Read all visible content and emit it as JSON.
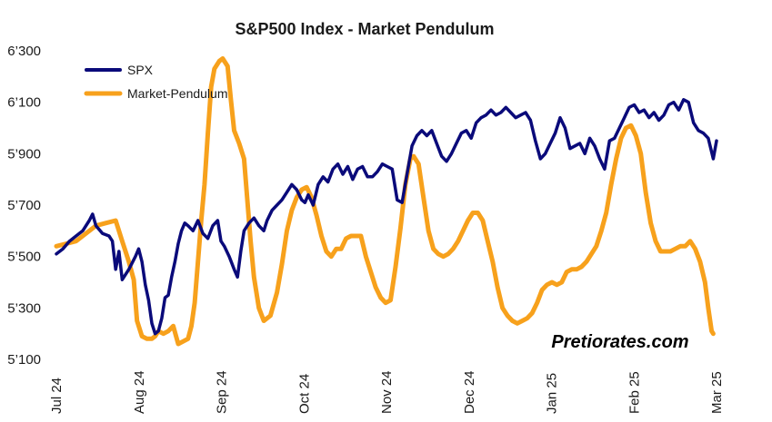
{
  "chart_data": {
    "type": "line",
    "title": "S&P500 Index - Market Pendulum",
    "xlabel": "",
    "ylabel": "",
    "x_tick_labels": [
      "Jul 24",
      "Aug 24",
      "Sep 24",
      "Oct 24",
      "Nov 24",
      "Dec 24",
      "Jan 25",
      "Feb 25",
      "Mar 25"
    ],
    "y_ticks": [
      "5’100",
      "5’300",
      "5’500",
      "5’700",
      "5’900",
      "6’100",
      "6’300"
    ],
    "ylim": [
      5100,
      6300
    ],
    "grid": false,
    "legend_position": "top-left",
    "watermark": "Pretiorates.com",
    "series": [
      {
        "name": "SPX",
        "color": "#0a0a7a",
        "points": [
          [
            0,
            5510
          ],
          [
            0.2,
            5530
          ],
          [
            0.4,
            5560
          ],
          [
            0.6,
            5580
          ],
          [
            0.8,
            5600
          ],
          [
            1.0,
            5640
          ],
          [
            1.1,
            5665
          ],
          [
            1.2,
            5620
          ],
          [
            1.4,
            5590
          ],
          [
            1.6,
            5580
          ],
          [
            1.7,
            5560
          ],
          [
            1.8,
            5450
          ],
          [
            1.9,
            5520
          ],
          [
            2.0,
            5410
          ],
          [
            2.2,
            5450
          ],
          [
            2.4,
            5500
          ],
          [
            2.5,
            5530
          ],
          [
            2.6,
            5480
          ],
          [
            2.7,
            5390
          ],
          [
            2.8,
            5330
          ],
          [
            2.9,
            5240
          ],
          [
            3.0,
            5200
          ],
          [
            3.1,
            5210
          ],
          [
            3.2,
            5260
          ],
          [
            3.3,
            5340
          ],
          [
            3.4,
            5350
          ],
          [
            3.5,
            5420
          ],
          [
            3.6,
            5480
          ],
          [
            3.7,
            5550
          ],
          [
            3.8,
            5600
          ],
          [
            3.9,
            5630
          ],
          [
            4.0,
            5620
          ],
          [
            4.15,
            5600
          ],
          [
            4.3,
            5640
          ],
          [
            4.45,
            5590
          ],
          [
            4.6,
            5570
          ],
          [
            4.75,
            5620
          ],
          [
            4.9,
            5640
          ],
          [
            5.0,
            5560
          ],
          [
            5.1,
            5540
          ],
          [
            5.25,
            5500
          ],
          [
            5.4,
            5450
          ],
          [
            5.5,
            5420
          ],
          [
            5.6,
            5520
          ],
          [
            5.7,
            5600
          ],
          [
            5.85,
            5630
          ],
          [
            6.0,
            5650
          ],
          [
            6.15,
            5620
          ],
          [
            6.3,
            5600
          ],
          [
            6.4,
            5640
          ],
          [
            6.55,
            5680
          ],
          [
            6.7,
            5700
          ],
          [
            6.85,
            5720
          ],
          [
            7.0,
            5750
          ],
          [
            7.15,
            5780
          ],
          [
            7.3,
            5760
          ],
          [
            7.45,
            5720
          ],
          [
            7.55,
            5710
          ],
          [
            7.65,
            5740
          ],
          [
            7.8,
            5700
          ],
          [
            7.95,
            5780
          ],
          [
            8.1,
            5810
          ],
          [
            8.25,
            5790
          ],
          [
            8.4,
            5840
          ],
          [
            8.55,
            5860
          ],
          [
            8.7,
            5820
          ],
          [
            8.85,
            5850
          ],
          [
            9.0,
            5800
          ],
          [
            9.15,
            5840
          ],
          [
            9.3,
            5850
          ],
          [
            9.45,
            5810
          ],
          [
            9.6,
            5810
          ],
          [
            9.75,
            5830
          ],
          [
            9.9,
            5860
          ],
          [
            10.05,
            5850
          ],
          [
            10.2,
            5840
          ],
          [
            10.35,
            5720
          ],
          [
            10.5,
            5710
          ],
          [
            10.65,
            5820
          ],
          [
            10.8,
            5930
          ],
          [
            10.95,
            5970
          ],
          [
            11.1,
            5990
          ],
          [
            11.25,
            5970
          ],
          [
            11.4,
            5990
          ],
          [
            11.55,
            5940
          ],
          [
            11.7,
            5890
          ],
          [
            11.85,
            5870
          ],
          [
            12.0,
            5900
          ],
          [
            12.15,
            5940
          ],
          [
            12.3,
            5980
          ],
          [
            12.45,
            5990
          ],
          [
            12.6,
            5960
          ],
          [
            12.75,
            6020
          ],
          [
            12.9,
            6040
          ],
          [
            13.05,
            6050
          ],
          [
            13.2,
            6070
          ],
          [
            13.35,
            6050
          ],
          [
            13.5,
            6060
          ],
          [
            13.65,
            6080
          ],
          [
            13.8,
            6060
          ],
          [
            13.95,
            6040
          ],
          [
            14.1,
            6050
          ],
          [
            14.25,
            6060
          ],
          [
            14.4,
            6030
          ],
          [
            14.55,
            5950
          ],
          [
            14.7,
            5880
          ],
          [
            14.85,
            5900
          ],
          [
            15.0,
            5940
          ],
          [
            15.15,
            5980
          ],
          [
            15.3,
            6040
          ],
          [
            15.45,
            6000
          ],
          [
            15.6,
            5920
          ],
          [
            15.75,
            5930
          ],
          [
            15.9,
            5940
          ],
          [
            16.05,
            5900
          ],
          [
            16.2,
            5960
          ],
          [
            16.35,
            5930
          ],
          [
            16.5,
            5880
          ],
          [
            16.65,
            5840
          ],
          [
            16.8,
            5950
          ],
          [
            16.95,
            5960
          ],
          [
            17.1,
            6000
          ],
          [
            17.25,
            6040
          ],
          [
            17.4,
            6080
          ],
          [
            17.55,
            6090
          ],
          [
            17.7,
            6060
          ],
          [
            17.85,
            6070
          ],
          [
            18.0,
            6040
          ],
          [
            18.15,
            6060
          ],
          [
            18.3,
            6030
          ],
          [
            18.45,
            6050
          ],
          [
            18.6,
            6090
          ],
          [
            18.75,
            6100
          ],
          [
            18.9,
            6070
          ],
          [
            19.05,
            6110
          ],
          [
            19.2,
            6100
          ],
          [
            19.35,
            6020
          ],
          [
            19.5,
            5990
          ],
          [
            19.65,
            5980
          ],
          [
            19.8,
            5960
          ],
          [
            19.95,
            5880
          ],
          [
            20.05,
            5950
          ]
        ]
      },
      {
        "name": "Market-Pendulum",
        "color": "#f7a11c",
        "points": [
          [
            0,
            5540
          ],
          [
            0.3,
            5550
          ],
          [
            0.6,
            5560
          ],
          [
            0.9,
            5590
          ],
          [
            1.2,
            5620
          ],
          [
            1.5,
            5630
          ],
          [
            1.8,
            5640
          ],
          [
            2.0,
            5560
          ],
          [
            2.2,
            5480
          ],
          [
            2.35,
            5410
          ],
          [
            2.45,
            5250
          ],
          [
            2.6,
            5190
          ],
          [
            2.75,
            5180
          ],
          [
            2.9,
            5180
          ],
          [
            3.0,
            5190
          ],
          [
            3.1,
            5210
          ],
          [
            3.25,
            5200
          ],
          [
            3.4,
            5210
          ],
          [
            3.55,
            5230
          ],
          [
            3.7,
            5160
          ],
          [
            3.85,
            5170
          ],
          [
            4.0,
            5180
          ],
          [
            4.1,
            5230
          ],
          [
            4.2,
            5320
          ],
          [
            4.3,
            5480
          ],
          [
            4.4,
            5640
          ],
          [
            4.5,
            5780
          ],
          [
            4.6,
            5980
          ],
          [
            4.7,
            6160
          ],
          [
            4.8,
            6230
          ],
          [
            4.95,
            6260
          ],
          [
            5.05,
            6270
          ],
          [
            5.2,
            6240
          ],
          [
            5.3,
            6110
          ],
          [
            5.4,
            5990
          ],
          [
            5.55,
            5940
          ],
          [
            5.7,
            5880
          ],
          [
            5.8,
            5720
          ],
          [
            5.9,
            5560
          ],
          [
            6.0,
            5420
          ],
          [
            6.15,
            5300
          ],
          [
            6.3,
            5250
          ],
          [
            6.5,
            5270
          ],
          [
            6.7,
            5360
          ],
          [
            6.85,
            5470
          ],
          [
            7.0,
            5600
          ],
          [
            7.15,
            5680
          ],
          [
            7.3,
            5730
          ],
          [
            7.45,
            5760
          ],
          [
            7.6,
            5770
          ],
          [
            7.75,
            5730
          ],
          [
            7.9,
            5660
          ],
          [
            8.05,
            5580
          ],
          [
            8.2,
            5520
          ],
          [
            8.35,
            5500
          ],
          [
            8.5,
            5530
          ],
          [
            8.65,
            5530
          ],
          [
            8.8,
            5570
          ],
          [
            8.95,
            5580
          ],
          [
            9.1,
            5580
          ],
          [
            9.25,
            5580
          ],
          [
            9.4,
            5500
          ],
          [
            9.55,
            5440
          ],
          [
            9.7,
            5380
          ],
          [
            9.85,
            5340
          ],
          [
            10.0,
            5320
          ],
          [
            10.15,
            5330
          ],
          [
            10.3,
            5460
          ],
          [
            10.45,
            5610
          ],
          [
            10.6,
            5780
          ],
          [
            10.75,
            5880
          ],
          [
            10.85,
            5890
          ],
          [
            11.0,
            5860
          ],
          [
            11.15,
            5730
          ],
          [
            11.3,
            5600
          ],
          [
            11.45,
            5530
          ],
          [
            11.6,
            5510
          ],
          [
            11.75,
            5500
          ],
          [
            11.9,
            5510
          ],
          [
            12.05,
            5530
          ],
          [
            12.2,
            5560
          ],
          [
            12.35,
            5600
          ],
          [
            12.5,
            5640
          ],
          [
            12.65,
            5670
          ],
          [
            12.8,
            5670
          ],
          [
            12.95,
            5640
          ],
          [
            13.1,
            5560
          ],
          [
            13.25,
            5480
          ],
          [
            13.4,
            5380
          ],
          [
            13.55,
            5300
          ],
          [
            13.7,
            5270
          ],
          [
            13.85,
            5250
          ],
          [
            14.0,
            5240
          ],
          [
            14.15,
            5250
          ],
          [
            14.3,
            5260
          ],
          [
            14.45,
            5280
          ],
          [
            14.6,
            5320
          ],
          [
            14.75,
            5370
          ],
          [
            14.9,
            5390
          ],
          [
            15.05,
            5400
          ],
          [
            15.2,
            5390
          ],
          [
            15.35,
            5400
          ],
          [
            15.5,
            5440
          ],
          [
            15.65,
            5450
          ],
          [
            15.8,
            5450
          ],
          [
            15.95,
            5460
          ],
          [
            16.1,
            5480
          ],
          [
            16.25,
            5510
          ],
          [
            16.4,
            5540
          ],
          [
            16.55,
            5600
          ],
          [
            16.7,
            5670
          ],
          [
            16.85,
            5780
          ],
          [
            17.0,
            5880
          ],
          [
            17.15,
            5960
          ],
          [
            17.3,
            6000
          ],
          [
            17.45,
            6010
          ],
          [
            17.6,
            5970
          ],
          [
            17.75,
            5900
          ],
          [
            17.9,
            5750
          ],
          [
            18.05,
            5630
          ],
          [
            18.2,
            5560
          ],
          [
            18.35,
            5520
          ],
          [
            18.5,
            5520
          ],
          [
            18.65,
            5520
          ],
          [
            18.8,
            5530
          ],
          [
            18.95,
            5540
          ],
          [
            19.1,
            5540
          ],
          [
            19.25,
            5560
          ],
          [
            19.4,
            5530
          ],
          [
            19.55,
            5480
          ],
          [
            19.7,
            5400
          ],
          [
            19.8,
            5300
          ],
          [
            19.9,
            5210
          ],
          [
            19.95,
            5200
          ]
        ]
      }
    ]
  }
}
